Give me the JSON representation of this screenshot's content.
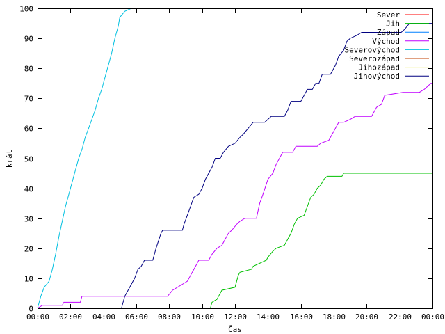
{
  "chart_data": {
    "type": "line",
    "xlabel": "Čas",
    "ylabel": "krát",
    "xlim": [
      0,
      24
    ],
    "ylim": [
      0,
      100
    ],
    "x_ticks": [
      {
        "value": 0,
        "label": "00:00"
      },
      {
        "value": 2,
        "label": "02:00"
      },
      {
        "value": 4,
        "label": "04:00"
      },
      {
        "value": 6,
        "label": "06:00"
      },
      {
        "value": 8,
        "label": "08:00"
      },
      {
        "value": 10,
        "label": "10:00"
      },
      {
        "value": 12,
        "label": "12:00"
      },
      {
        "value": 14,
        "label": "14:00"
      },
      {
        "value": 16,
        "label": "16:00"
      },
      {
        "value": 18,
        "label": "18:00"
      },
      {
        "value": 20,
        "label": "20:00"
      },
      {
        "value": 22,
        "label": "22:00"
      },
      {
        "value": 24,
        "label": "00:00"
      }
    ],
    "y_ticks": [
      0,
      10,
      20,
      30,
      40,
      50,
      60,
      70,
      80,
      90,
      100
    ],
    "grid": false,
    "legend_position": "top-right",
    "series": [
      {
        "name": "Sever",
        "color": "#ff0000",
        "points": []
      },
      {
        "name": "Jih",
        "color": "#00c000",
        "points": [
          [
            10.5,
            0
          ],
          [
            10.6,
            2
          ],
          [
            10.9,
            3
          ],
          [
            11.0,
            4
          ],
          [
            11.2,
            6
          ],
          [
            12.0,
            7
          ],
          [
            12.2,
            11
          ],
          [
            12.3,
            12
          ],
          [
            13.0,
            13
          ],
          [
            13.1,
            14
          ],
          [
            13.9,
            16
          ],
          [
            14.0,
            17
          ],
          [
            14.3,
            19
          ],
          [
            14.5,
            20
          ],
          [
            15.0,
            21
          ],
          [
            15.4,
            25
          ],
          [
            15.6,
            28
          ],
          [
            15.8,
            30
          ],
          [
            16.2,
            31
          ],
          [
            16.4,
            34
          ],
          [
            16.6,
            37
          ],
          [
            16.8,
            38
          ],
          [
            17.0,
            40
          ],
          [
            17.2,
            41
          ],
          [
            17.4,
            43
          ],
          [
            17.6,
            44
          ],
          [
            18.5,
            44
          ],
          [
            18.6,
            45
          ],
          [
            24.0,
            45
          ]
        ]
      },
      {
        "name": "Západ",
        "color": "#0080ff",
        "points": []
      },
      {
        "name": "Východ",
        "color": "#c000ff",
        "points": [
          [
            0.0,
            0
          ],
          [
            0.3,
            1
          ],
          [
            1.5,
            1
          ],
          [
            1.6,
            2
          ],
          [
            2.6,
            2
          ],
          [
            2.7,
            4
          ],
          [
            7.9,
            4
          ],
          [
            8.2,
            6
          ],
          [
            8.5,
            7
          ],
          [
            8.8,
            8
          ],
          [
            9.1,
            9
          ],
          [
            9.4,
            12
          ],
          [
            9.6,
            14
          ],
          [
            9.8,
            16
          ],
          [
            10.4,
            16
          ],
          [
            10.6,
            18
          ],
          [
            10.9,
            20
          ],
          [
            11.2,
            21
          ],
          [
            11.4,
            23
          ],
          [
            11.6,
            25
          ],
          [
            11.8,
            26
          ],
          [
            12.1,
            28
          ],
          [
            12.3,
            29
          ],
          [
            12.6,
            30
          ],
          [
            13.3,
            30
          ],
          [
            13.5,
            35
          ],
          [
            13.7,
            38
          ],
          [
            14.0,
            43
          ],
          [
            14.3,
            45
          ],
          [
            14.5,
            48
          ],
          [
            14.7,
            50
          ],
          [
            14.9,
            52
          ],
          [
            15.5,
            52
          ],
          [
            15.7,
            54
          ],
          [
            17.0,
            54
          ],
          [
            17.2,
            55
          ],
          [
            17.7,
            56
          ],
          [
            18.0,
            59
          ],
          [
            18.3,
            62
          ],
          [
            18.6,
            62
          ],
          [
            19.0,
            63
          ],
          [
            19.3,
            64
          ],
          [
            20.3,
            64
          ],
          [
            20.6,
            67
          ],
          [
            20.9,
            68
          ],
          [
            21.1,
            71
          ],
          [
            22.2,
            72
          ],
          [
            23.2,
            72
          ],
          [
            23.5,
            73
          ],
          [
            23.9,
            75
          ],
          [
            24.0,
            75
          ]
        ]
      },
      {
        "name": "Severovýchod",
        "color": "#00c0e0",
        "points": [
          [
            0.0,
            0
          ],
          [
            0.2,
            4
          ],
          [
            0.4,
            7
          ],
          [
            0.7,
            9
          ],
          [
            0.9,
            13
          ],
          [
            1.1,
            18
          ],
          [
            1.3,
            24
          ],
          [
            1.5,
            29
          ],
          [
            1.7,
            34
          ],
          [
            1.9,
            38
          ],
          [
            2.1,
            42
          ],
          [
            2.3,
            46
          ],
          [
            2.5,
            50
          ],
          [
            2.7,
            53
          ],
          [
            2.9,
            57
          ],
          [
            3.1,
            60
          ],
          [
            3.3,
            63
          ],
          [
            3.5,
            66
          ],
          [
            3.7,
            70
          ],
          [
            3.9,
            73
          ],
          [
            4.1,
            77
          ],
          [
            4.3,
            81
          ],
          [
            4.5,
            85
          ],
          [
            4.7,
            90
          ],
          [
            4.9,
            94
          ],
          [
            5.0,
            97
          ],
          [
            5.3,
            99
          ],
          [
            5.7,
            100
          ]
        ]
      },
      {
        "name": "Severozápad",
        "color": "#c04000",
        "points": []
      },
      {
        "name": "Jihozápad",
        "color": "#e0e000",
        "points": []
      },
      {
        "name": "Jihovýchod",
        "color": "#000080",
        "points": [
          [
            5.1,
            0
          ],
          [
            5.3,
            4
          ],
          [
            5.5,
            6
          ],
          [
            5.7,
            8
          ],
          [
            5.9,
            10
          ],
          [
            6.1,
            13
          ],
          [
            6.3,
            14
          ],
          [
            6.5,
            16
          ],
          [
            7.0,
            16
          ],
          [
            7.2,
            20
          ],
          [
            7.5,
            25
          ],
          [
            7.6,
            26
          ],
          [
            8.8,
            26
          ],
          [
            8.9,
            28
          ],
          [
            9.1,
            31
          ],
          [
            9.3,
            34
          ],
          [
            9.5,
            37
          ],
          [
            9.8,
            38
          ],
          [
            10.0,
            40
          ],
          [
            10.2,
            43
          ],
          [
            10.4,
            45
          ],
          [
            10.6,
            47
          ],
          [
            10.8,
            50
          ],
          [
            11.1,
            50
          ],
          [
            11.3,
            52
          ],
          [
            11.6,
            54
          ],
          [
            12.0,
            55
          ],
          [
            12.3,
            57
          ],
          [
            12.5,
            58
          ],
          [
            12.8,
            60
          ],
          [
            13.1,
            62
          ],
          [
            13.8,
            62
          ],
          [
            14.0,
            63
          ],
          [
            14.2,
            64
          ],
          [
            15.0,
            64
          ],
          [
            15.2,
            66
          ],
          [
            15.4,
            69
          ],
          [
            16.0,
            69
          ],
          [
            16.2,
            71
          ],
          [
            16.4,
            73
          ],
          [
            16.7,
            73
          ],
          [
            16.9,
            75
          ],
          [
            17.1,
            75
          ],
          [
            17.3,
            78
          ],
          [
            17.8,
            78
          ],
          [
            18.1,
            81
          ],
          [
            18.3,
            84
          ],
          [
            18.6,
            86
          ],
          [
            18.8,
            89
          ],
          [
            19.0,
            90
          ],
          [
            19.4,
            91
          ],
          [
            19.7,
            92
          ],
          [
            22.1,
            92
          ],
          [
            22.3,
            93
          ],
          [
            22.6,
            95
          ],
          [
            24.0,
            95
          ]
        ]
      }
    ]
  }
}
